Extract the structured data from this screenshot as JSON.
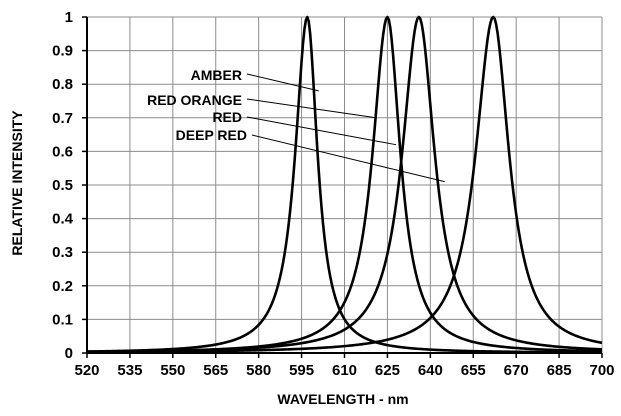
{
  "chart_data": {
    "type": "line",
    "xlabel": "WAVELENGTH - nm",
    "ylabel": "RELATIVE INTENSITY",
    "xlim": [
      520,
      700
    ],
    "ylim": [
      0,
      1
    ],
    "x_ticks": [
      "520",
      "535",
      "550",
      "565",
      "580",
      "595",
      "610",
      "625",
      "640",
      "655",
      "670",
      "685",
      "700"
    ],
    "y_ticks": [
      "0",
      "0.1",
      "0.2",
      "0.3",
      "0.4",
      "0.5",
      "0.6",
      "0.7",
      "0.8",
      "0.9",
      "1"
    ],
    "grid": true,
    "series": [
      {
        "name": "AMBER",
        "peak_nm": 597,
        "halfwidth_left_nm": 6.5,
        "halfwidth_right_nm": 5.5,
        "x": [
          560,
          570,
          575,
          580,
          585,
          588,
          591,
          593,
          595,
          597,
          599,
          601,
          603,
          605,
          608,
          612,
          615,
          620,
          625,
          630,
          640,
          660
        ],
        "y": [
          0.02,
          0.05,
          0.07,
          0.12,
          0.19,
          0.27,
          0.42,
          0.59,
          0.84,
          1.0,
          0.86,
          0.62,
          0.43,
          0.3,
          0.17,
          0.09,
          0.06,
          0.03,
          0.02,
          0.01,
          0.0,
          0.0
        ]
      },
      {
        "name": "RED ORANGE",
        "peak_nm": 625,
        "halfwidth_left_nm": 8.0,
        "halfwidth_right_nm": 7.0,
        "x": [
          570,
          580,
          590,
          600,
          605,
          610,
          615,
          618,
          620,
          623,
          625,
          627,
          630,
          633,
          636,
          640,
          645,
          650,
          660,
          680
        ],
        "y": [
          0.01,
          0.02,
          0.04,
          0.08,
          0.13,
          0.23,
          0.42,
          0.61,
          0.78,
          0.95,
          1.0,
          0.97,
          0.83,
          0.58,
          0.38,
          0.21,
          0.11,
          0.06,
          0.02,
          0.0
        ]
      },
      {
        "name": "RED",
        "peak_nm": 636,
        "halfwidth_left_nm": 9.0,
        "halfwidth_right_nm": 8.5,
        "x": [
          580,
          590,
          600,
          610,
          615,
          620,
          625,
          628,
          632,
          636,
          640,
          643,
          646,
          650,
          655,
          660,
          670,
          690
        ],
        "y": [
          0.01,
          0.03,
          0.06,
          0.12,
          0.2,
          0.3,
          0.5,
          0.7,
          0.88,
          1.0,
          0.92,
          0.73,
          0.55,
          0.36,
          0.19,
          0.1,
          0.03,
          0.0
        ]
      },
      {
        "name": "DEEP RED",
        "peak_nm": 662,
        "halfwidth_left_nm": 9.5,
        "halfwidth_right_nm": 8.5,
        "x": [
          600,
          615,
          625,
          630,
          640,
          645,
          650,
          654,
          658,
          662,
          666,
          670,
          675,
          680,
          690,
          700
        ],
        "y": [
          0.01,
          0.04,
          0.07,
          0.1,
          0.2,
          0.29,
          0.45,
          0.68,
          0.9,
          1.0,
          0.86,
          0.6,
          0.32,
          0.16,
          0.04,
          0.01
        ]
      }
    ]
  }
}
